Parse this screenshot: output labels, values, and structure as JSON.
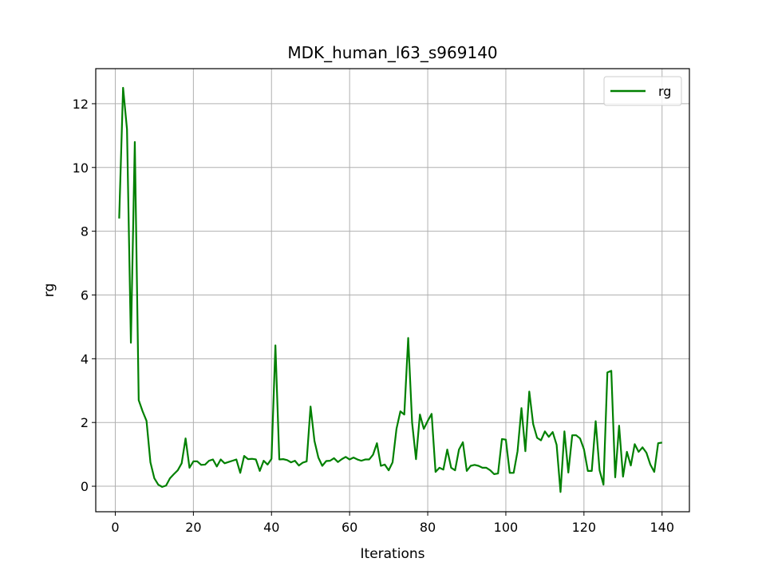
{
  "chart_data": {
    "type": "line",
    "title": "MDK_human_l63_s969140",
    "xlabel": "Iterations",
    "ylabel": "rg",
    "xlim": [
      -5,
      147
    ],
    "ylim": [
      -0.8,
      13.1
    ],
    "xticks": [
      0,
      20,
      40,
      60,
      80,
      100,
      120,
      140
    ],
    "yticks": [
      0,
      2,
      4,
      6,
      8,
      10,
      12
    ],
    "grid": true,
    "legend_position": "top-right",
    "series": [
      {
        "name": "rg",
        "color": "#008000",
        "x": [
          1,
          2,
          3,
          4,
          5,
          6,
          7,
          8,
          9,
          10,
          11,
          12,
          13,
          14,
          15,
          16,
          17,
          18,
          19,
          20,
          21,
          22,
          23,
          24,
          25,
          26,
          27,
          28,
          29,
          30,
          31,
          32,
          33,
          34,
          35,
          36,
          37,
          38,
          39,
          40,
          41,
          42,
          43,
          44,
          45,
          46,
          47,
          48,
          49,
          50,
          51,
          52,
          53,
          54,
          55,
          56,
          57,
          58,
          59,
          60,
          61,
          62,
          63,
          64,
          65,
          66,
          67,
          68,
          69,
          70,
          71,
          72,
          73,
          74,
          75,
          76,
          77,
          78,
          79,
          80,
          81,
          82,
          83,
          84,
          85,
          86,
          87,
          88,
          89,
          90,
          91,
          92,
          93,
          94,
          95,
          96,
          97,
          98,
          99,
          100,
          101,
          102,
          103,
          104,
          105,
          106,
          107,
          108,
          109,
          110,
          111,
          112,
          113,
          114,
          115,
          116,
          117,
          118,
          119,
          120,
          121,
          122,
          123,
          124,
          125,
          126,
          127,
          128,
          129,
          130,
          131,
          132,
          133,
          134,
          135,
          136,
          137,
          138,
          139,
          140
        ],
        "values": [
          8.4,
          12.5,
          11.2,
          4.5,
          10.8,
          2.7,
          2.35,
          2.05,
          0.75,
          0.25,
          0.05,
          -0.02,
          0.02,
          0.25,
          0.38,
          0.5,
          0.72,
          1.5,
          0.58,
          0.78,
          0.78,
          0.67,
          0.68,
          0.8,
          0.84,
          0.62,
          0.84,
          0.72,
          0.76,
          0.8,
          0.84,
          0.42,
          0.95,
          0.85,
          0.86,
          0.84,
          0.48,
          0.8,
          0.68,
          0.86,
          4.42,
          0.84,
          0.85,
          0.82,
          0.75,
          0.8,
          0.65,
          0.74,
          0.78,
          2.5,
          1.42,
          0.9,
          0.64,
          0.79,
          0.8,
          0.88,
          0.76,
          0.85,
          0.92,
          0.84,
          0.9,
          0.84,
          0.8,
          0.84,
          0.84,
          0.99,
          1.35,
          0.64,
          0.68,
          0.5,
          0.75,
          1.8,
          2.35,
          2.25,
          4.65,
          2.0,
          0.85,
          2.25,
          1.8,
          2.05,
          2.27,
          0.45,
          0.58,
          0.52,
          1.15,
          0.58,
          0.5,
          1.15,
          1.38,
          0.48,
          0.64,
          0.67,
          0.64,
          0.58,
          0.58,
          0.5,
          0.38,
          0.4,
          1.48,
          1.46,
          0.42,
          0.42,
          1.1,
          2.45,
          1.1,
          2.97,
          1.95,
          1.52,
          1.44,
          1.72,
          1.55,
          1.7,
          1.3,
          -0.18,
          1.72,
          0.43,
          1.6,
          1.6,
          1.5,
          1.16,
          0.48,
          0.48,
          2.04,
          0.5,
          0.05,
          3.57,
          3.62,
          0.28,
          1.9,
          0.3,
          1.08,
          0.65,
          1.32,
          1.08,
          1.22,
          1.05,
          0.68,
          0.45,
          1.35,
          1.37
        ]
      }
    ]
  }
}
